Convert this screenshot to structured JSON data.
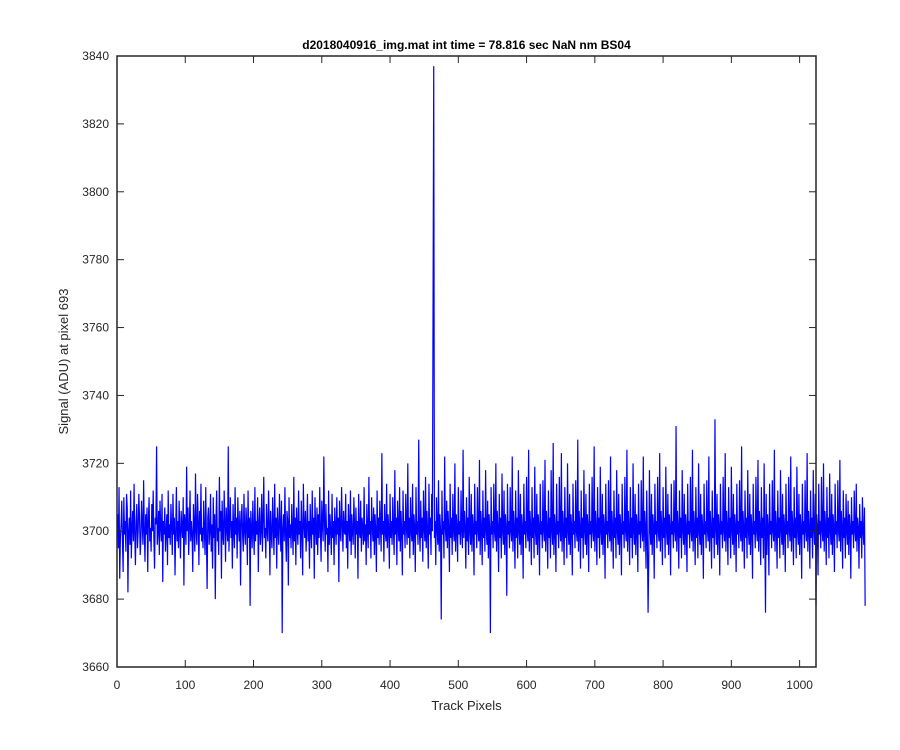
{
  "chart_data": {
    "type": "line",
    "title": "d2018040916_img.mat int time = 78.816 sec  NaN nm BS04",
    "xlabel": "Track Pixels",
    "ylabel": "Signal (ADU) at pixel 693",
    "xlim": [
      0,
      1024
    ],
    "ylim": [
      3660,
      3840
    ],
    "xticks": [
      0,
      100,
      200,
      300,
      400,
      500,
      600,
      700,
      800,
      900,
      1000
    ],
    "yticks": [
      3660,
      3680,
      3700,
      3720,
      3740,
      3760,
      3780,
      3800,
      3820,
      3840
    ],
    "grid": false,
    "line_color": "#0000ff",
    "series": [
      {
        "x_start": 1,
        "x_step": 1,
        "values": [
          3705,
          3695,
          3713,
          3686,
          3698,
          3702,
          3709,
          3697,
          3688,
          3710,
          3699,
          3703,
          3694,
          3711,
          3707,
          3682,
          3700,
          3704,
          3696,
          3712,
          3692,
          3701,
          3706,
          3697,
          3714,
          3699,
          3690,
          3703,
          3708,
          3695,
          3700,
          3711,
          3704,
          3693,
          3698,
          3709,
          3702,
          3696,
          3715,
          3700,
          3691,
          3705,
          3699,
          3707,
          3688,
          3703,
          3710,
          3697,
          3701,
          3694,
          3708,
          3700,
          3712,
          3698,
          3689,
          3704,
          3702,
          3725,
          3696,
          3700,
          3706,
          3693,
          3709,
          3701,
          3697,
          3711,
          3685,
          3703,
          3699,
          3707,
          3694,
          3700,
          3705,
          3690,
          3712,
          3698,
          3702,
          3696,
          3708,
          3701,
          3693,
          3711,
          3699,
          3704,
          3687,
          3700,
          3713,
          3697,
          3703,
          3695,
          3709,
          3700,
          3692,
          3706,
          3701,
          3698,
          3710,
          3684,
          3705,
          3702,
          3696,
          3719,
          3700,
          3707,
          3693,
          3701,
          3712,
          3697,
          3703,
          3699,
          3688,
          3708,
          3702,
          3694,
          3717,
          3700,
          3696,
          3711,
          3703,
          3690,
          3706,
          3699,
          3714,
          3697,
          3701,
          3695,
          3709,
          3700,
          3693,
          3713,
          3698,
          3683,
          3704,
          3707,
          3696,
          3700,
          3711,
          3694,
          3702,
          3689,
          3710,
          3698,
          3705,
          3680,
          3703,
          3712,
          3697,
          3701,
          3693,
          3716,
          3700,
          3706,
          3686,
          3709,
          3699,
          3696,
          3712,
          3703,
          3691,
          3707,
          3701,
          3697,
          3725,
          3694,
          3702,
          3710,
          3698,
          3703,
          3689,
          3708,
          3700,
          3695,
          3713,
          3699,
          3704,
          3692,
          3710,
          3701,
          3697,
          3706,
          3684,
          3703,
          3708,
          3699,
          3694,
          3711,
          3700,
          3696,
          3707,
          3702,
          3690,
          3712,
          3698,
          3704,
          3678,
          3706,
          3701,
          3695,
          3709,
          3700,
          3693,
          3713,
          3697,
          3703,
          3699,
          3710,
          3688,
          3702,
          3707,
          3696,
          3700,
          3711,
          3694,
          3703,
          3716,
          3698,
          3701,
          3692,
          3708,
          3700,
          3697,
          3712,
          3703,
          3687,
          3706,
          3699,
          3695,
          3710,
          3701,
          3693,
          3714,
          3698,
          3704,
          3689,
          3707,
          3700,
          3696,
          3711,
          3702,
          3694,
          3709,
          3670,
          3701,
          3705,
          3697,
          3713,
          3699,
          3691,
          3706,
          3703,
          3684,
          3710,
          3698,
          3702,
          3695,
          3708,
          3700,
          3693,
          3716,
          3697,
          3704,
          3690,
          3707,
          3701,
          3696,
          3712,
          3699,
          3703,
          3692,
          3709,
          3700,
          3687,
          3714,
          3702,
          3698,
          3706,
          3694,
          3701,
          3711,
          3697,
          3703,
          3689,
          3708,
          3700,
          3695,
          3712,
          3699,
          3704,
          3686,
          3710,
          3701,
          3696,
          3707,
          3693,
          3705,
          3698,
          3713,
          3700,
          3691,
          3709,
          3702,
          3697,
          3722,
          3703,
          3694,
          3708,
          3699,
          3701,
          3688,
          3712,
          3696,
          3705,
          3700,
          3693,
          3711,
          3698,
          3703,
          3690,
          3707,
          3701,
          3696,
          3710,
          3699,
          3704,
          3685,
          3709,
          3700,
          3697,
          3713,
          3702,
          3694,
          3706,
          3700,
          3699,
          3711,
          3695,
          3703,
          3689,
          3708,
          3701,
          3697,
          3712,
          3693,
          3705,
          3700,
          3696,
          3710,
          3702,
          3692,
          3707,
          3699,
          3703,
          3686,
          3711,
          3700,
          3698,
          3709,
          3694,
          3704,
          3701,
          3696,
          3713,
          3697,
          3702,
          3690,
          3708,
          3700,
          3695,
          3716,
          3699,
          3703,
          3692,
          3710,
          3701,
          3697,
          3707,
          3693,
          3705,
          3700,
          3688,
          3712,
          3698,
          3704,
          3696,
          3709,
          3701,
          3694,
          3723,
          3699,
          3703,
          3691,
          3708,
          3700,
          3697,
          3714,
          3695,
          3705,
          3701,
          3689,
          3711,
          3698,
          3703,
          3696,
          3710,
          3700,
          3693,
          3718,
          3699,
          3704,
          3690,
          3709,
          3701,
          3697,
          3713,
          3694,
          3706,
          3700,
          3687,
          3712,
          3699,
          3703,
          3695,
          3711,
          3701,
          3696,
          3720,
          3698,
          3704,
          3692,
          3710,
          3700,
          3697,
          3714,
          3693,
          3705,
          3701,
          3688,
          3713,
          3699,
          3703,
          3696,
          3727,
          3700,
          3694,
          3709,
          3698,
          3704,
          3691,
          3712,
          3701,
          3697,
          3716,
          3695,
          3706,
          3700,
          3689,
          3714,
          3699,
          3704,
          3693,
          3711,
          3700,
          3766,
          3837,
          3698,
          3703,
          3690,
          3710,
          3701,
          3696,
          3715,
          3694,
          3705,
          3700,
          3674,
          3712,
          3699,
          3703,
          3692,
          3722,
          3701,
          3697,
          3709,
          3695,
          3706,
          3700,
          3688,
          3714,
          3698,
          3704,
          3693,
          3711,
          3700,
          3697,
          3720,
          3694,
          3705,
          3701,
          3691,
          3713,
          3699,
          3703,
          3696,
          3712,
          3700,
          3695,
          3724,
          3698,
          3706,
          3701,
          3689,
          3710,
          3697,
          3704,
          3693,
          3716,
          3700,
          3696,
          3711,
          3694,
          3705,
          3701,
          3687,
          3714,
          3699,
          3703,
          3695,
          3713,
          3700,
          3697,
          3721,
          3693,
          3706,
          3701,
          3690,
          3712,
          3698,
          3704,
          3694,
          3718,
          3700,
          3696,
          3709,
          3692,
          3705,
          3701,
          3670,
          3713,
          3699,
          3703,
          3695,
          3714,
          3700,
          3697,
          3720,
          3694,
          3706,
          3701,
          3688,
          3711,
          3698,
          3704,
          3692,
          3717,
          3700,
          3696,
          3712,
          3693,
          3705,
          3701,
          3681,
          3714,
          3699,
          3703,
          3695,
          3713,
          3700,
          3697,
          3722,
          3694,
          3706,
          3701,
          3689,
          3712,
          3698,
          3704,
          3692,
          3718,
          3700,
          3696,
          3711,
          3693,
          3705,
          3701,
          3686,
          3714,
          3699,
          3703,
          3695,
          3716,
          3700,
          3697,
          3724,
          3694,
          3706,
          3701,
          3690,
          3713,
          3698,
          3704,
          3692,
          3719,
          3700,
          3696,
          3711,
          3693,
          3705,
          3701,
          3687,
          3714,
          3699,
          3703,
          3695,
          3715,
          3700,
          3697,
          3721,
          3694,
          3706,
          3701,
          3689,
          3712,
          3698,
          3704,
          3692,
          3718,
          3700,
          3696,
          3726,
          3693,
          3705,
          3701,
          3688,
          3714,
          3699,
          3703,
          3695,
          3716,
          3700,
          3697,
          3723,
          3694,
          3706,
          3701,
          3690,
          3713,
          3698,
          3704,
          3692,
          3720,
          3700,
          3696,
          3711,
          3693,
          3705,
          3701,
          3687,
          3714,
          3699,
          3703,
          3695,
          3715,
          3700,
          3697,
          3727,
          3694,
          3706,
          3701,
          3689,
          3712,
          3698,
          3704,
          3692,
          3718,
          3700,
          3696,
          3711,
          3693,
          3705,
          3701,
          3688,
          3714,
          3699,
          3703,
          3695,
          3716,
          3700,
          3697,
          3725,
          3694,
          3706,
          3701,
          3690,
          3713,
          3698,
          3704,
          3692,
          3719,
          3700,
          3696,
          3711,
          3693,
          3705,
          3701,
          3686,
          3714,
          3699,
          3703,
          3695,
          3715,
          3700,
          3697,
          3722,
          3694,
          3706,
          3701,
          3689,
          3712,
          3698,
          3704,
          3692,
          3718,
          3700,
          3696,
          3711,
          3693,
          3705,
          3701,
          3687,
          3714,
          3699,
          3703,
          3695,
          3716,
          3700,
          3697,
          3724,
          3694,
          3706,
          3701,
          3690,
          3713,
          3698,
          3704,
          3692,
          3720,
          3700,
          3696,
          3711,
          3693,
          3705,
          3701,
          3688,
          3714,
          3699,
          3703,
          3695,
          3715,
          3700,
          3697,
          3722,
          3694,
          3706,
          3701,
          3689,
          3712,
          3698,
          3676,
          3692,
          3718,
          3700,
          3696,
          3711,
          3693,
          3705,
          3701,
          3686,
          3714,
          3699,
          3703,
          3695,
          3716,
          3700,
          3697,
          3723,
          3694,
          3706,
          3701,
          3690,
          3713,
          3698,
          3704,
          3692,
          3719,
          3700,
          3696,
          3711,
          3693,
          3705,
          3701,
          3687,
          3714,
          3699,
          3703,
          3695,
          3715,
          3700,
          3697,
          3731,
          3694,
          3706,
          3701,
          3689,
          3712,
          3698,
          3704,
          3692,
          3718,
          3700,
          3696,
          3711,
          3693,
          3705,
          3701,
          3688,
          3714,
          3699,
          3703,
          3695,
          3716,
          3700,
          3697,
          3724,
          3694,
          3706,
          3701,
          3690,
          3713,
          3698,
          3704,
          3692,
          3720,
          3700,
          3696,
          3711,
          3693,
          3705,
          3701,
          3686,
          3714,
          3699,
          3703,
          3695,
          3715,
          3700,
          3697,
          3722,
          3694,
          3706,
          3701,
          3689,
          3712,
          3698,
          3704,
          3692,
          3733,
          3700,
          3696,
          3711,
          3693,
          3705,
          3701,
          3687,
          3714,
          3699,
          3703,
          3695,
          3716,
          3700,
          3697,
          3723,
          3694,
          3706,
          3701,
          3690,
          3713,
          3698,
          3704,
          3692,
          3719,
          3700,
          3696,
          3711,
          3693,
          3705,
          3701,
          3688,
          3714,
          3699,
          3703,
          3695,
          3715,
          3700,
          3697,
          3725,
          3694,
          3706,
          3701,
          3689,
          3712,
          3698,
          3704,
          3692,
          3718,
          3700,
          3696,
          3711,
          3693,
          3705,
          3701,
          3686,
          3714,
          3699,
          3703,
          3695,
          3716,
          3700,
          3697,
          3721,
          3694,
          3706,
          3701,
          3690,
          3713,
          3698,
          3704,
          3692,
          3720,
          3700,
          3676,
          3711,
          3693,
          3705,
          3701,
          3687,
          3714,
          3699,
          3703,
          3695,
          3715,
          3700,
          3697,
          3724,
          3694,
          3706,
          3701,
          3689,
          3712,
          3698,
          3704,
          3692,
          3718,
          3700,
          3696,
          3711,
          3693,
          3705,
          3701,
          3688,
          3714,
          3699,
          3703,
          3695,
          3716,
          3700,
          3697,
          3722,
          3694,
          3706,
          3701,
          3690,
          3713,
          3698,
          3704,
          3692,
          3719,
          3700,
          3696,
          3711,
          3693,
          3705,
          3701,
          3686,
          3714,
          3699,
          3703,
          3695,
          3715,
          3700,
          3697,
          3723,
          3694,
          3706,
          3701,
          3689,
          3712,
          3698,
          3704,
          3692,
          3718,
          3700,
          3696,
          3711,
          3678,
          3705,
          3701,
          3687,
          3714,
          3699,
          3703,
          3695,
          3716,
          3700,
          3697,
          3720,
          3694,
          3706,
          3701,
          3690,
          3713,
          3698,
          3704,
          3692,
          3717,
          3700,
          3696,
          3711,
          3693,
          3705,
          3701,
          3688,
          3714,
          3699,
          3703,
          3695,
          3715,
          3700,
          3697,
          3721,
          3694,
          3706,
          3701,
          3689,
          3712,
          3698,
          3704,
          3692,
          3711,
          3700,
          3696,
          3709,
          3693,
          3705,
          3701,
          3686,
          3710,
          3699,
          3703,
          3695,
          3712,
          3700,
          3697,
          3714,
          3694,
          3704,
          3701,
          3689,
          3708,
          3698,
          3703,
          3692,
          3710,
          3700,
          3696,
          3707,
          3678
        ]
      }
    ]
  }
}
